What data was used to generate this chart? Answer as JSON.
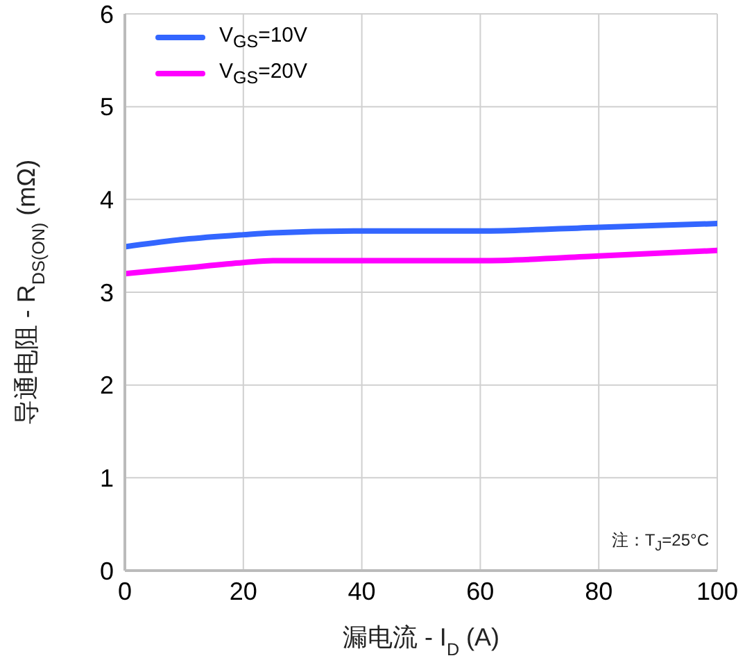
{
  "chart_data": {
    "type": "line",
    "xlabel": "漏电流 - I$_{D}$ (A)",
    "ylabel": "导通电阻 - R$_{DS(ON)}$ (mΩ)",
    "x": [
      0,
      10,
      20,
      25,
      40,
      60,
      80,
      100
    ],
    "series": [
      {
        "name": "V$_{GS}$=10V",
        "color": "#3366ff",
        "values": [
          3.49,
          3.57,
          3.62,
          3.64,
          3.66,
          3.66,
          3.7,
          3.74
        ]
      },
      {
        "name": "V$_{GS}$=20V",
        "color": "#ff00ff",
        "values": [
          3.2,
          3.26,
          3.32,
          3.34,
          3.34,
          3.34,
          3.39,
          3.45
        ]
      }
    ],
    "xlim": [
      0,
      100
    ],
    "xticks": [
      0,
      20,
      40,
      60,
      80,
      100
    ],
    "ylim": [
      0,
      6
    ],
    "yticks": [
      0,
      1,
      2,
      3,
      4,
      5,
      6
    ],
    "grid": true,
    "legend": "top left",
    "marker": "none",
    "line_style": "solid",
    "annotations": [
      "注：T$_{J}$=25°C"
    ]
  }
}
